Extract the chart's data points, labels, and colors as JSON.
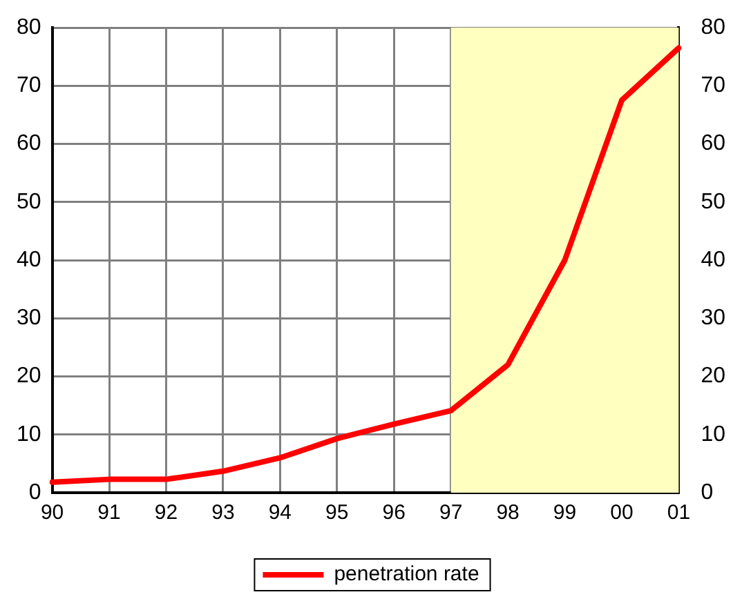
{
  "chart_data": {
    "type": "line",
    "categories": [
      "90",
      "91",
      "92",
      "93",
      "94",
      "95",
      "96",
      "97",
      "98",
      "99",
      "00",
      "01"
    ],
    "series": [
      {
        "name": "penetration rate",
        "color": "#ff0000",
        "values": [
          1.8,
          2.3,
          2.3,
          3.7,
          6,
          9.3,
          11.8,
          14.1,
          22,
          40,
          67.5,
          76.5
        ]
      }
    ],
    "ylim": [
      0,
      80
    ],
    "yticks": [
      0,
      10,
      20,
      30,
      40,
      50,
      60,
      70,
      80
    ],
    "y2lim": [
      0,
      80
    ],
    "y2ticks": [
      0,
      10,
      20,
      30,
      40,
      50,
      60,
      70,
      80
    ],
    "bands": [
      {
        "axis": "x",
        "from": "97",
        "to": "01",
        "color": "#ffffc0"
      }
    ],
    "grid": true,
    "legend": "bottom",
    "marker": "none",
    "line_style": "solid"
  }
}
